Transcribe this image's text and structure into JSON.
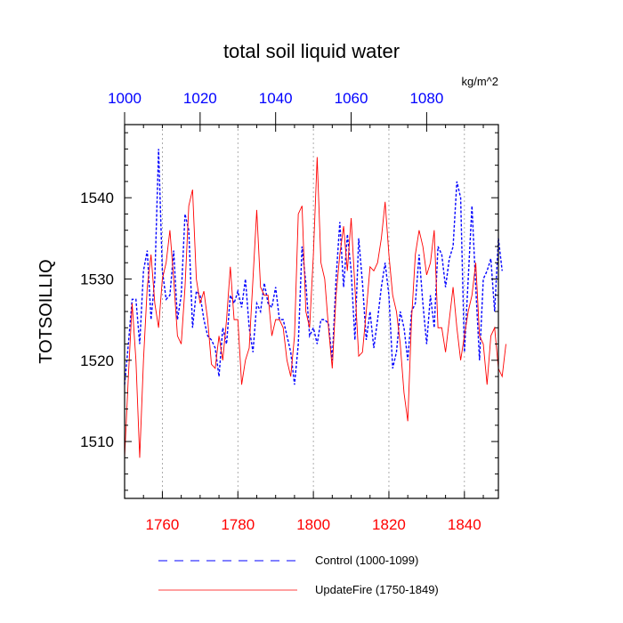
{
  "chart_data": {
    "type": "line",
    "title": "total soil liquid water",
    "units_label": "kg/m^2",
    "ylabel": "TOTSOILLIQ",
    "ylim": [
      1503,
      1549
    ],
    "yticks": [
      1510,
      1520,
      1530,
      1540
    ],
    "bottom_axis": {
      "range": [
        1750,
        1849
      ],
      "ticks": [
        1760,
        1780,
        1800,
        1820,
        1840
      ],
      "color": "#ff0000"
    },
    "top_axis": {
      "range": [
        1000,
        1099
      ],
      "ticks": [
        1000,
        1020,
        1040,
        1060,
        1080
      ],
      "color": "#0000ff"
    },
    "vertical_gridlines_at": [
      1760,
      1780,
      1800,
      1820,
      1840
    ],
    "grid": "dotted vertical lines at bottom-axis major ticks",
    "legend_position": "bottom",
    "series": [
      {
        "name": "Control (1000-1099)",
        "axis": "top",
        "color": "#0000ff",
        "style": "dashed",
        "x_start": 1000,
        "values": [
          1517,
          1522,
          1527.5,
          1527.5,
          1522,
          1531,
          1533.5,
          1525,
          1530,
          1546,
          1531,
          1527.5,
          1528,
          1533.5,
          1525,
          1528,
          1538,
          1536,
          1524,
          1528.5,
          1528,
          1525,
          1523,
          1522.5,
          1521.5,
          1518,
          1524,
          1522,
          1528,
          1527,
          1528.5,
          1526.5,
          1530,
          1524,
          1521,
          1527,
          1526,
          1529.5,
          1527,
          1526.5,
          1529,
          1525,
          1525,
          1523,
          1521,
          1517,
          1522,
          1534,
          1529.5,
          1523,
          1524,
          1522,
          1525,
          1525,
          1524.5,
          1520,
          1530,
          1537,
          1529,
          1535.5,
          1531,
          1522.5,
          1535,
          1529.5,
          1522.5,
          1526,
          1521.5,
          1525,
          1529,
          1532,
          1528,
          1519,
          1521,
          1526,
          1524,
          1520,
          1526,
          1527,
          1533,
          1527,
          1522,
          1528,
          1524,
          1534,
          1533,
          1529,
          1532.5,
          1534,
          1542,
          1540,
          1521,
          1530,
          1539,
          1529,
          1520,
          1530,
          1531,
          1532.5,
          1526,
          1535,
          1531
        ]
      },
      {
        "name": "UpdateFire (1750-1849)",
        "axis": "bottom",
        "color": "#ff0000",
        "style": "solid",
        "x_start": 1750,
        "values": [
          1508,
          1518,
          1527,
          1520,
          1508,
          1520,
          1529,
          1533,
          1527,
          1524,
          1530,
          1532,
          1536,
          1530,
          1523,
          1522,
          1529,
          1539,
          1541,
          1530,
          1527,
          1528.5,
          1525,
          1519.5,
          1519,
          1523,
          1520,
          1525,
          1531.5,
          1525,
          1525,
          1517,
          1520,
          1521.5,
          1530,
          1538.5,
          1529,
          1528,
          1528,
          1523,
          1525,
          1525,
          1524,
          1520,
          1518,
          1523,
          1538,
          1539,
          1526,
          1524,
          1533,
          1545,
          1532,
          1530,
          1524,
          1519,
          1528,
          1533,
          1536.5,
          1531,
          1537.5,
          1529,
          1520.5,
          1521,
          1526,
          1531.5,
          1531,
          1532,
          1535,
          1539.5,
          1533,
          1528,
          1526,
          1522,
          1516,
          1512.5,
          1525,
          1533,
          1536,
          1534,
          1530.5,
          1532,
          1536,
          1524,
          1524,
          1521,
          1525,
          1529,
          1524,
          1520,
          1523,
          1526,
          1528,
          1532,
          1523,
          1522,
          1517,
          1523,
          1524,
          1519,
          1518,
          1522
        ]
      }
    ]
  }
}
